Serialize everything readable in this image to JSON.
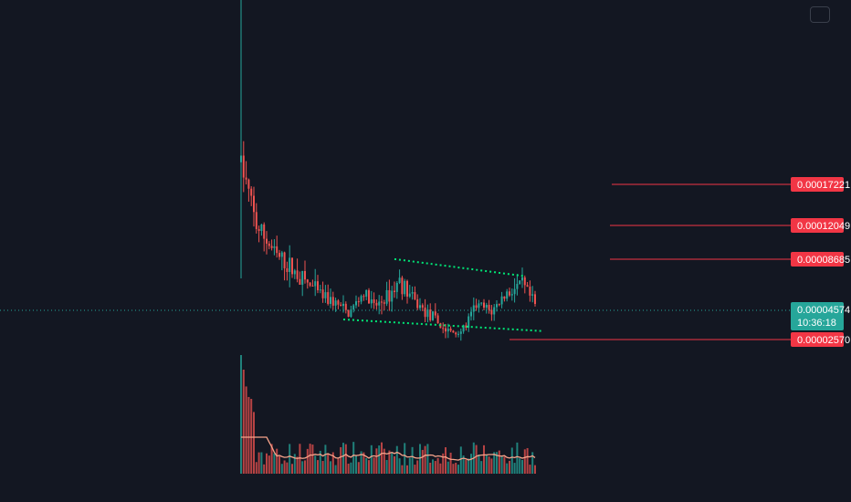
{
  "chart_data": {
    "type": "candlestick",
    "title": "",
    "current_price": {
      "value": "0.00004574",
      "countdown": "10:36:18",
      "level": 4.574e-05
    },
    "levels": [
      {
        "label": "0.00017221",
        "value": 0.00017221
      },
      {
        "label": "0.00012049",
        "value": 0.00012049
      },
      {
        "label": "0.00008685",
        "value": 8.685e-05
      },
      {
        "label": "0.00002570",
        "value": 2.57e-05
      }
    ],
    "channel": {
      "upper": [
        {
          "bar": 60,
          "price": 8.7e-05
        },
        {
          "bar": 111,
          "price": 7.32e-05
        }
      ],
      "lower": [
        {
          "bar": 40,
          "price": 3.95e-05
        },
        {
          "bar": 118,
          "price": 3.15e-05
        }
      ]
    },
    "volume_ma": true,
    "colors": {
      "up": "#26a69a",
      "down": "#ef5350",
      "level": "#f23645",
      "channel": "#00e676",
      "ma": "#f7a48b",
      "background": "#131722"
    }
  },
  "ui": {
    "corner_button": "chart-settings"
  }
}
